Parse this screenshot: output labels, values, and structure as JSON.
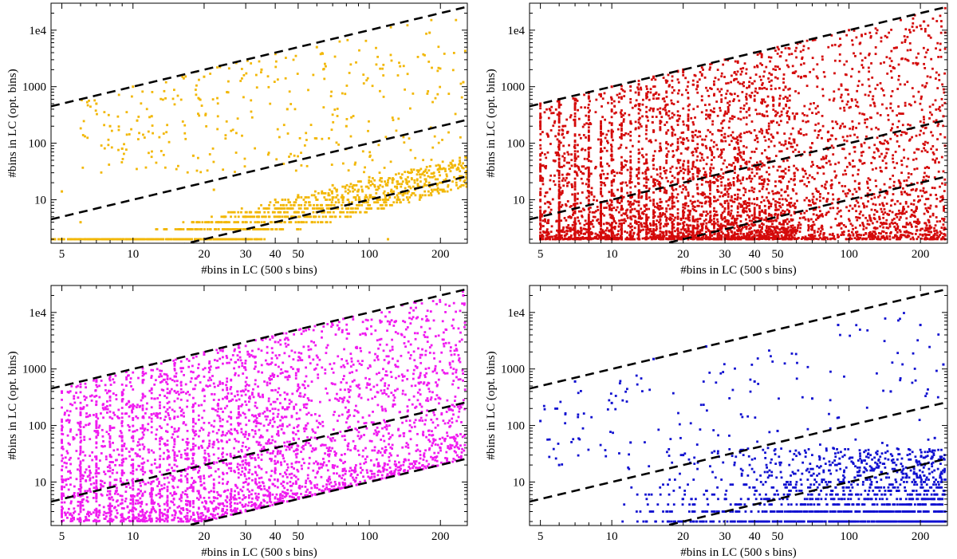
{
  "chart_data": [
    {
      "type": "scatter",
      "xlabel": "#bins in LC  (500 s bins)",
      "ylabel": "#bins in LC (opt. bins)",
      "xscale": "log",
      "yscale": "log",
      "xlim": [
        4.5,
        260
      ],
      "ylim": [
        1.7,
        30000
      ],
      "xticks": [
        5,
        10,
        20,
        30,
        40,
        50,
        100,
        200
      ],
      "yticks": [
        10,
        100,
        1000,
        10000
      ],
      "ytick_labels": [
        "10",
        "100",
        "1000",
        "1e4"
      ],
      "grid": false,
      "marker_color": "#f2b705",
      "reference_lines": [
        {
          "x": [
            4.5,
            260
          ],
          "y": [
            450,
            26000
          ]
        },
        {
          "x": [
            4.5,
            260
          ],
          "y": [
            4.5,
            260
          ]
        },
        {
          "x": [
            4.5,
            260
          ],
          "y": [
            0.45,
            26
          ]
        }
      ],
      "points": [
        [
          5,
          14
        ],
        [
          6,
          4
        ],
        [
          7,
          500
        ],
        [
          8,
          200
        ],
        [
          9,
          80
        ],
        [
          10,
          1000
        ],
        [
          12,
          300
        ],
        [
          15,
          2
        ],
        [
          18,
          60
        ],
        [
          20,
          1500
        ],
        [
          22,
          15
        ],
        [
          25,
          800
        ],
        [
          30,
          3
        ],
        [
          35,
          2000
        ],
        [
          40,
          10
        ],
        [
          45,
          400
        ],
        [
          50,
          12
        ],
        [
          60,
          5000
        ],
        [
          70,
          18
        ],
        [
          80,
          200
        ],
        [
          100,
          25
        ],
        [
          120,
          2
        ],
        [
          150,
          30
        ],
        [
          180,
          9000
        ],
        [
          200,
          35
        ],
        [
          230,
          40
        ],
        [
          250,
          1200
        ]
      ]
    },
    {
      "type": "scatter",
      "xlabel": "#bins in LC  (500 s bins)",
      "ylabel": "#bins in LC (opt. bins)",
      "xscale": "log",
      "yscale": "log",
      "xlim": [
        4.5,
        260
      ],
      "ylim": [
        1.7,
        30000
      ],
      "xticks": [
        5,
        10,
        20,
        30,
        40,
        50,
        100,
        200
      ],
      "yticks": [
        10,
        100,
        1000,
        10000
      ],
      "ytick_labels": [
        "10",
        "100",
        "1000",
        "1e4"
      ],
      "grid": false,
      "marker_color": "#d40a0a",
      "reference_lines": [
        {
          "x": [
            4.5,
            260
          ],
          "y": [
            450,
            26000
          ]
        },
        {
          "x": [
            4.5,
            260
          ],
          "y": [
            4.5,
            260
          ]
        },
        {
          "x": [
            4.5,
            260
          ],
          "y": [
            0.45,
            26
          ]
        }
      ],
      "points": [
        [
          5,
          500
        ],
        [
          5,
          5
        ],
        [
          6,
          600
        ],
        [
          7,
          3
        ],
        [
          8,
          800
        ],
        [
          10,
          1000
        ],
        [
          10,
          20
        ],
        [
          15,
          1500
        ],
        [
          20,
          2000
        ],
        [
          20,
          40
        ],
        [
          30,
          3000
        ],
        [
          40,
          4000
        ],
        [
          50,
          5000
        ],
        [
          70,
          100
        ],
        [
          100,
          10000
        ],
        [
          150,
          500
        ],
        [
          200,
          12000
        ],
        [
          250,
          300
        ]
      ]
    },
    {
      "type": "scatter",
      "xlabel": "#bins in LC  (500 s bins)",
      "ylabel": "#bins in LC (opt. bins)",
      "xscale": "log",
      "yscale": "log",
      "xlim": [
        4.5,
        260
      ],
      "ylim": [
        1.7,
        30000
      ],
      "xticks": [
        5,
        10,
        20,
        30,
        40,
        50,
        100,
        200
      ],
      "yticks": [
        10,
        100,
        1000,
        10000
      ],
      "ytick_labels": [
        "10",
        "100",
        "1000",
        "1e4"
      ],
      "grid": false,
      "marker_color": "#f01bf0",
      "reference_lines": [
        {
          "x": [
            4.5,
            260
          ],
          "y": [
            450,
            26000
          ]
        },
        {
          "x": [
            4.5,
            260
          ],
          "y": [
            4.5,
            260
          ]
        },
        {
          "x": [
            4.5,
            260
          ],
          "y": [
            0.45,
            26
          ]
        }
      ],
      "points": [
        [
          5,
          400
        ],
        [
          5,
          40
        ],
        [
          6,
          70
        ],
        [
          7,
          600
        ],
        [
          8,
          5
        ],
        [
          10,
          200
        ],
        [
          12,
          1200
        ],
        [
          15,
          30
        ],
        [
          20,
          1800
        ],
        [
          25,
          300
        ],
        [
          30,
          10
        ],
        [
          40,
          3000
        ],
        [
          50,
          80
        ],
        [
          70,
          6000
        ],
        [
          100,
          150
        ],
        [
          150,
          12000
        ],
        [
          200,
          40
        ],
        [
          250,
          20000
        ]
      ]
    },
    {
      "type": "scatter",
      "xlabel": "#bins in LC  (500 s bins)",
      "ylabel": "#bins in LC (opt. bins)",
      "xscale": "log",
      "yscale": "log",
      "xlim": [
        4.5,
        260
      ],
      "ylim": [
        1.7,
        30000
      ],
      "xticks": [
        5,
        10,
        20,
        30,
        40,
        50,
        100,
        200
      ],
      "yticks": [
        10,
        100,
        1000,
        10000
      ],
      "ytick_labels": [
        "10",
        "100",
        "1000",
        "1e4"
      ],
      "grid": false,
      "marker_color": "#1010d0",
      "reference_lines": [
        {
          "x": [
            4.5,
            260
          ],
          "y": [
            450,
            26000
          ]
        },
        {
          "x": [
            4.5,
            260
          ],
          "y": [
            4.5,
            260
          ]
        },
        {
          "x": [
            4.5,
            260
          ],
          "y": [
            0.45,
            26
          ]
        }
      ],
      "points": [
        [
          5,
          120
        ],
        [
          6,
          20
        ],
        [
          7,
          600
        ],
        [
          10,
          250
        ],
        [
          12,
          50
        ],
        [
          15,
          1500
        ],
        [
          20,
          30
        ],
        [
          25,
          2500
        ],
        [
          30,
          5
        ],
        [
          40,
          600
        ],
        [
          50,
          80
        ],
        [
          70,
          300
        ],
        [
          90,
          6000
        ],
        [
          100,
          10
        ],
        [
          150,
          400
        ],
        [
          200,
          6000
        ],
        [
          230,
          60
        ],
        [
          250,
          1200
        ]
      ]
    }
  ]
}
